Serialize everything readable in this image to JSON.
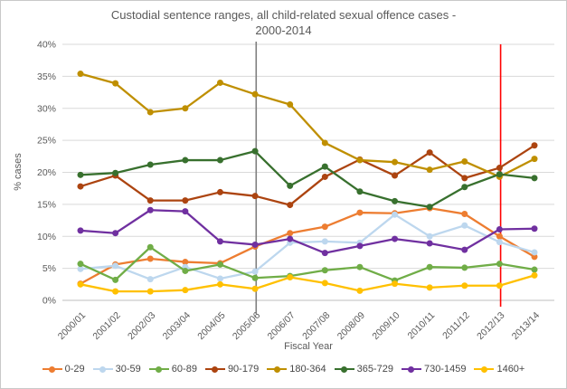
{
  "chart_data": {
    "type": "line",
    "title_lines": [
      "Custodial sentence ranges, all child-related sexual offence cases -",
      "2000-2014"
    ],
    "title": "Custodial sentence ranges, all child-related sexual offence cases - 2000-2014",
    "xlabel": "Fiscal Year",
    "ylabel": "% cases",
    "ylim": [
      0,
      40
    ],
    "y_tick_labels": [
      "0%",
      "5%",
      "10%",
      "15%",
      "20%",
      "25%",
      "30%",
      "35%",
      "40%"
    ],
    "grid": true,
    "legend_position": "bottom",
    "categories": [
      "2000/01",
      "2001/02",
      "2002/03",
      "2003/04",
      "2004/05",
      "2005/06",
      "2006/07",
      "2007/08",
      "2008/09",
      "2009/10",
      "2010/11",
      "2011/12",
      "2012/13",
      "2013/14"
    ],
    "series": [
      {
        "name": "0-29",
        "color": "#ED7D31",
        "values": [
          2.6,
          5.6,
          6.5,
          6.0,
          5.8,
          8.4,
          10.5,
          11.5,
          13.7,
          13.6,
          14.4,
          13.5,
          10.0,
          6.8
        ]
      },
      {
        "name": "30-59",
        "color": "#BDD7EE",
        "values": [
          4.9,
          5.4,
          3.3,
          5.2,
          3.4,
          4.5,
          9.0,
          9.2,
          9.0,
          13.4,
          10.0,
          11.7,
          9.1,
          7.5
        ]
      },
      {
        "name": "60-89",
        "color": "#70AD47",
        "values": [
          5.7,
          3.2,
          8.3,
          4.6,
          5.6,
          3.5,
          3.8,
          4.7,
          5.2,
          3.1,
          5.2,
          5.1,
          5.7,
          4.8
        ]
      },
      {
        "name": "90-179",
        "color": "#AC4410",
        "values": [
          17.8,
          19.5,
          15.6,
          15.6,
          16.9,
          16.3,
          14.9,
          19.3,
          22.0,
          19.5,
          23.1,
          19.1,
          20.7,
          24.2
        ]
      },
      {
        "name": "180-364",
        "color": "#BF8F00",
        "values": [
          35.4,
          33.9,
          29.4,
          30.0,
          34.0,
          32.2,
          30.6,
          24.6,
          21.9,
          21.6,
          20.4,
          21.7,
          19.3,
          22.1
        ]
      },
      {
        "name": "365-729",
        "color": "#38702E",
        "values": [
          19.6,
          19.9,
          21.2,
          21.9,
          21.9,
          23.3,
          17.9,
          20.9,
          17.0,
          15.5,
          14.6,
          17.7,
          19.7,
          19.1
        ]
      },
      {
        "name": "730-1459",
        "color": "#7030A0",
        "values": [
          10.9,
          10.5,
          14.1,
          13.9,
          9.2,
          8.7,
          9.6,
          7.4,
          8.5,
          9.6,
          8.9,
          7.9,
          11.1,
          11.2
        ]
      },
      {
        "name": "1460+",
        "color": "#FFC000",
        "values": [
          2.5,
          1.4,
          1.4,
          1.6,
          2.5,
          1.8,
          3.6,
          2.7,
          1.5,
          2.6,
          2.0,
          2.3,
          2.3,
          3.9
        ]
      }
    ],
    "vlines": [
      {
        "category": "2005/06",
        "color": "#7F7F7F",
        "span": "tall"
      },
      {
        "category": "2012/13",
        "color": "#FF0000",
        "span": "plot"
      }
    ],
    "colors": {
      "grid": "#D9D9D9",
      "axis_line": "#BFBFBF",
      "tick_text": "#595959",
      "title_text": "#595959"
    }
  }
}
